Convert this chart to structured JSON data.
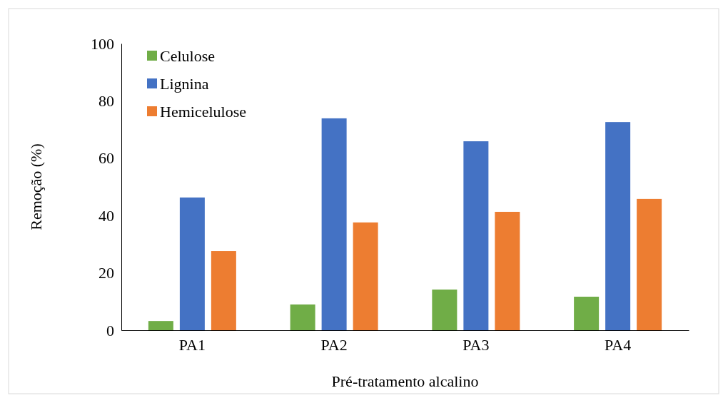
{
  "chart_data": {
    "type": "bar",
    "xlabel": "Pré-tratamento alcalino",
    "ylabel": "Remoção (%)",
    "categories": [
      "PA1",
      "PA2",
      "PA3",
      "PA4"
    ],
    "series": [
      {
        "name": "Celulose",
        "color": "#70ad47",
        "values": [
          3.2,
          9.0,
          14.2,
          11.7
        ]
      },
      {
        "name": "Lignina",
        "color": "#4472c4",
        "values": [
          46.3,
          73.9,
          65.9,
          72.6
        ]
      },
      {
        "name": "Hemicelulose",
        "color": "#ed7d31",
        "values": [
          27.6,
          37.6,
          41.3,
          45.8
        ]
      }
    ],
    "ylim": [
      0,
      100
    ],
    "yticks": [
      0,
      20,
      40,
      60,
      80,
      100
    ],
    "grid": false,
    "legend": "top left"
  }
}
